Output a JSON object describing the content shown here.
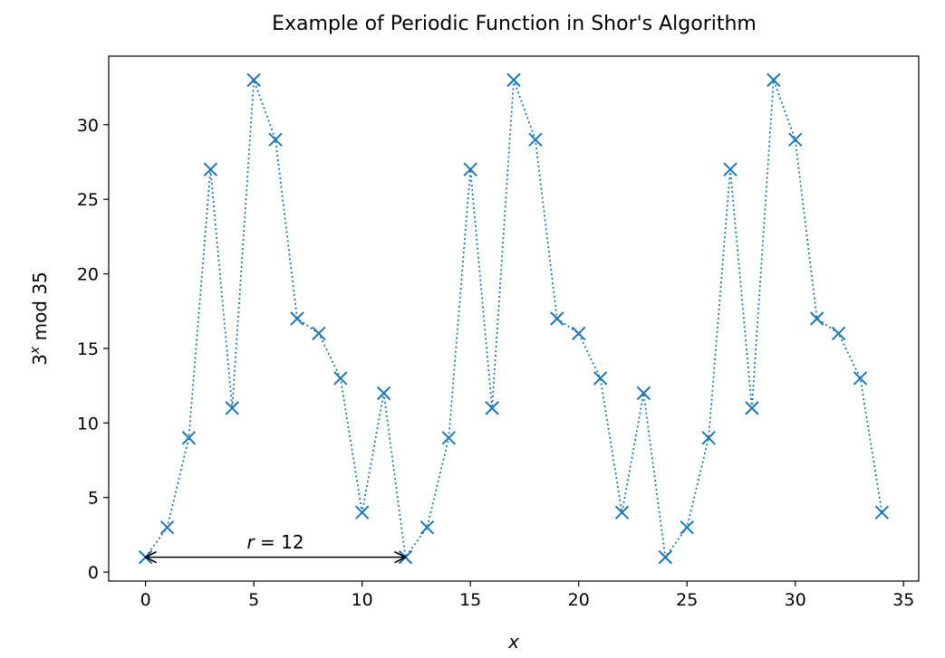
{
  "chart_data": {
    "type": "line",
    "title": "Example of Periodic Function in Shor's Algorithm",
    "xlabel": "x",
    "ylabel_parts": [
      "3",
      "x",
      " mod 35"
    ],
    "xlim": [
      -1.7,
      35.7
    ],
    "ylim": [
      -0.6,
      34.6
    ],
    "xticks": [
      0,
      5,
      10,
      15,
      20,
      25,
      30,
      35
    ],
    "yticks": [
      0,
      5,
      10,
      15,
      20,
      25,
      30
    ],
    "grid": false,
    "legend": "none",
    "series": [
      {
        "marker": "x",
        "linestyle": "dotted",
        "x": [
          0,
          1,
          2,
          3,
          4,
          5,
          6,
          7,
          8,
          9,
          10,
          11,
          12,
          13,
          14,
          15,
          16,
          17,
          18,
          19,
          20,
          21,
          22,
          23,
          24,
          25,
          26,
          27,
          28,
          29,
          30,
          31,
          32,
          33,
          34
        ],
        "y": [
          1,
          3,
          9,
          27,
          11,
          33,
          29,
          17,
          16,
          13,
          4,
          12,
          1,
          3,
          9,
          27,
          11,
          33,
          29,
          17,
          16,
          13,
          4,
          12,
          1,
          3,
          9,
          27,
          11,
          33,
          29,
          17,
          16,
          13,
          4
        ]
      }
    ],
    "annotation": {
      "label_parts": [
        "r",
        " = 12"
      ],
      "x_start": 0,
      "x_end": 12,
      "y": 1,
      "label_x": 6,
      "label_y": 1.6
    },
    "colors": {
      "series": "#1f77b4",
      "axes": "#000000"
    }
  }
}
